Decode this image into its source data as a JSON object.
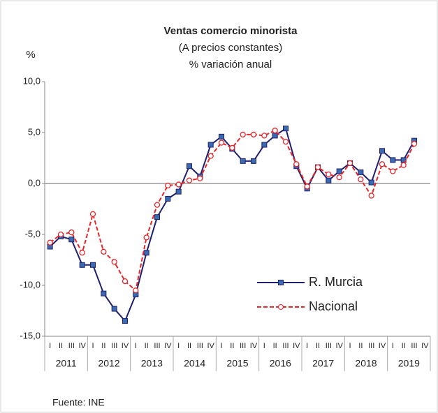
{
  "chart_data": {
    "type": "line",
    "title": "Ventas comercio minorista",
    "subtitle": [
      "(A  precios constantes)",
      "% variación anual"
    ],
    "y_unit": "%",
    "source": "Fuente: INE",
    "categories": [
      "I",
      "II",
      "III",
      "IV",
      "I",
      "II",
      "III",
      "IV",
      "I",
      "II",
      "III",
      "IV",
      "I",
      "II",
      "III",
      "IV",
      "I",
      "II",
      "III",
      "IV",
      "I",
      "II",
      "III",
      "IV",
      "I",
      "II",
      "III",
      "IV",
      "I",
      "II",
      "III",
      "IV",
      "I",
      "II",
      "III",
      "IV"
    ],
    "years": [
      "2011",
      "2012",
      "2013",
      "2014",
      "2015",
      "2016",
      "2017",
      "2018",
      "2019"
    ],
    "series": [
      {
        "name": "R. Murcia",
        "color": "#1f1f6e",
        "marker": "square",
        "values": [
          -6.2,
          -5.2,
          -5.5,
          -8.0,
          -8.0,
          -10.8,
          -12.3,
          -13.5,
          -10.9,
          -6.8,
          -3.3,
          -1.5,
          -0.8,
          1.7,
          0.7,
          3.8,
          4.6,
          3.4,
          2.2,
          2.2,
          3.8,
          4.7,
          5.4,
          1.7,
          -0.5,
          1.6,
          0.3,
          1.2,
          2.0,
          1.1,
          0.1,
          3.2,
          2.3,
          2.3,
          4.2,
          null
        ]
      },
      {
        "name": "Nacional",
        "color": "#e8262a",
        "marker": "circle",
        "values": [
          -5.8,
          -5.0,
          -4.8,
          -6.8,
          -3.0,
          -6.7,
          -7.7,
          -9.6,
          -10.5,
          -5.3,
          -2.1,
          -0.2,
          -0.1,
          0.3,
          0.5,
          2.7,
          4.0,
          3.5,
          4.8,
          4.8,
          4.7,
          5.2,
          4.1,
          1.9,
          -0.3,
          1.6,
          0.9,
          0.6,
          2.0,
          0.4,
          -1.2,
          1.9,
          1.2,
          1.8,
          3.9,
          null
        ]
      }
    ],
    "ylim": [
      -15,
      10
    ],
    "yticks": [
      {
        "value": -15,
        "label": "-15,0"
      },
      {
        "value": -10,
        "label": "-10,0"
      },
      {
        "value": -5,
        "label": "-5,0"
      },
      {
        "value": 0,
        "label": "0,0"
      },
      {
        "value": 5,
        "label": "5,0"
      },
      {
        "value": 10,
        "label": "10,0"
      }
    ],
    "grid": false
  }
}
